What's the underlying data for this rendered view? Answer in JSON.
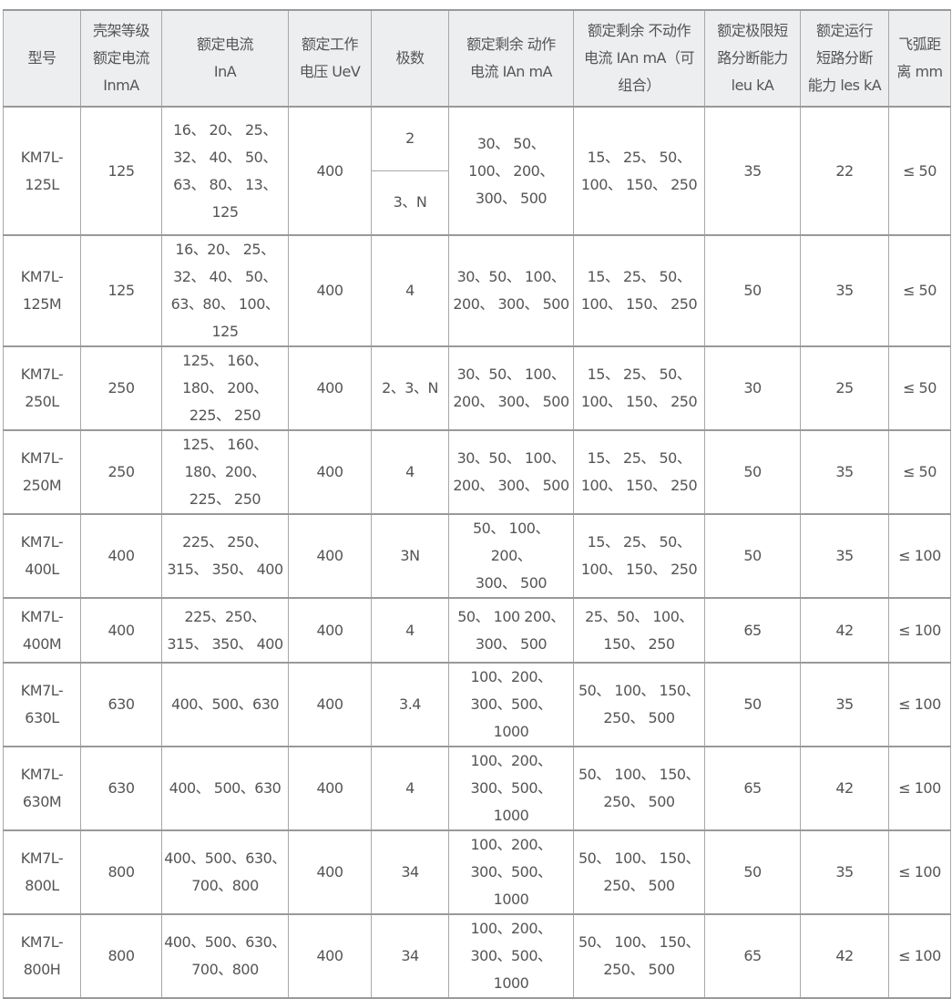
{
  "headers": [
    "型号",
    "壳架等级\n额定电流\nInmA",
    "额定电流\nInA",
    "额定工作\n电压 UeV",
    "极数",
    "额定剩余 动作\n电流 IAn mA",
    "额定剩余 不动作\n电流 IAn mA（可\n组合）",
    "额定极限短\n路分断能力\nleu kA",
    "额定运行\n短路分断\n能力 les kA",
    "飞弧距\n离 mm"
  ],
  "rows": [
    {
      "model": "KM7L-\n125L",
      "frame": "125",
      "current": "16、 20、 25、\n32、 40、 50、\n63、 80、 13、\n125",
      "voltage": "400",
      "poles": [
        "2",
        "3、N"
      ],
      "trip": "30、 50、\n100、 200、\n300、 500",
      "notrip": "15、 25、 50、\n100、 150、 250",
      "icu": "35",
      "ics": "22",
      "arc": "≤ 50"
    },
    {
      "model": "KM7L-\n125M",
      "frame": "125",
      "current": "16、20、 25、\n32、 40、 50、\n63、80、 100、\n125",
      "voltage": "400",
      "poles": [
        "4"
      ],
      "trip": "30、50、 100、\n200、 300、 500",
      "notrip": "15、 25、 50、\n100、 150、 250",
      "icu": "50",
      "ics": "35",
      "arc": "≤ 50"
    },
    {
      "model": "KM7L-\n250L",
      "frame": "250",
      "current": "125、 160、\n180、 200、\n225、 250",
      "voltage": "400",
      "poles": [
        "2、3、N"
      ],
      "trip": "30、50、 100、\n200、 300、 500",
      "notrip": "15、 25、 50、\n100、 150、 250",
      "icu": "30",
      "ics": "25",
      "arc": "≤ 50"
    },
    {
      "model": "KM7L-\n250M",
      "frame": "250",
      "current": "125、 160、\n180、200、\n225、 250",
      "voltage": "400",
      "poles": [
        "4"
      ],
      "trip": "30、50、 100、\n200、 300、 500",
      "notrip": "15、 25、 50、\n100、 150、 250",
      "icu": "50",
      "ics": "35",
      "arc": "≤ 50"
    },
    {
      "model": "KM7L-\n400L",
      "frame": "400",
      "current": "225、 250、\n315、 350、 400",
      "voltage": "400",
      "poles": [
        "3N"
      ],
      "trip": "50、 100、 200、\n300、 500",
      "notrip": "15、 25、 50、\n100、 150、 250",
      "icu": "50",
      "ics": "35",
      "arc": "≤ 100"
    },
    {
      "model": "KM7L-\n400M",
      "frame": "400",
      "current": "225、250、\n315、 350、 400",
      "voltage": "400",
      "poles": [
        "4"
      ],
      "trip": "50、 100 200、\n300、 500",
      "notrip": "25、50、 100、\n150、 250",
      "icu": "65",
      "ics": "42",
      "arc": "≤ 100"
    },
    {
      "model": "KM7L-\n630L",
      "frame": "630",
      "current": "400、500、630",
      "voltage": "400",
      "poles": [
        "3.4"
      ],
      "trip": "100、200、\n300、500、 1000",
      "notrip": "50、 100、 150、\n250、 500",
      "icu": "50",
      "ics": "35",
      "arc": "≤ 100"
    },
    {
      "model": "KM7L-\n630M",
      "frame": "630",
      "current": "400、 500、630",
      "voltage": "400",
      "poles": [
        "4"
      ],
      "trip": "100、200、\n300、500、 1000",
      "notrip": "50、 100、 150、\n250、 500",
      "icu": "65",
      "ics": "42",
      "arc": "≤ 100"
    },
    {
      "model": "KM7L-\n800L",
      "frame": "800",
      "current": "400、500、630、\n700、800",
      "voltage": "400",
      "poles": [
        "34"
      ],
      "trip": "100、200、\n300、500、 1000",
      "notrip": "50、 100、 150、\n250、 500",
      "icu": "50",
      "ics": "35",
      "arc": "≤ 100"
    },
    {
      "model": "KM7L-\n800H",
      "frame": "800",
      "current": "400、500、630、\n700、800",
      "voltage": "400",
      "poles": [
        "34"
      ],
      "trip": "100、200、\n300、500、 1000",
      "notrip": "50、 100、 150、\n250、 500",
      "icu": "65",
      "ics": "42",
      "arc": "≤ 100"
    }
  ]
}
